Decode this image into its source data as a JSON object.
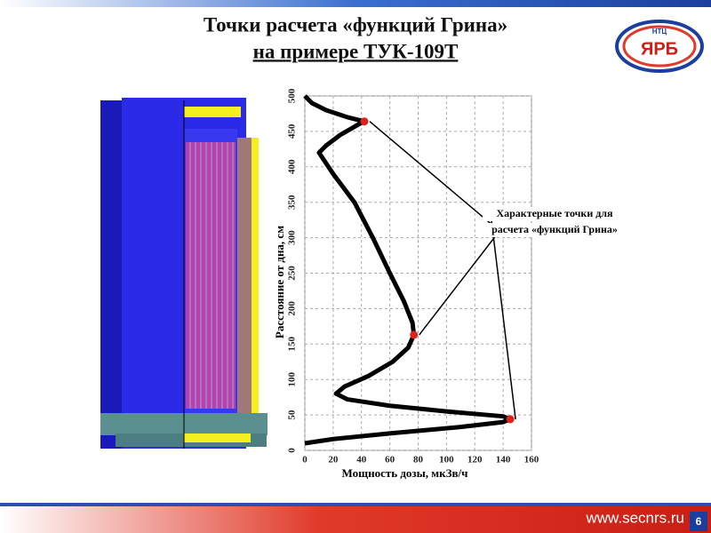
{
  "slide": {
    "title": [
      "Точки расчета «функций Грина»",
      "на примере ТУК-109Т"
    ],
    "url": "www.secnrs.ru",
    "page_number": "6",
    "logo": {
      "main": "ЯРБ",
      "top": "НТЦ"
    }
  },
  "chart_data": {
    "type": "line",
    "x_label": "Мощность дозы, мкЗв/ч",
    "y_label": "Расстояние от дна, см",
    "annotation": [
      "Характерные точки для",
      "расчета «функций Грина»"
    ],
    "series": [
      {
        "color": "#000000",
        "x": [
          0,
          20,
          60,
          110,
          140,
          145,
          140,
          100,
          60,
          30,
          22,
          28,
          45,
          62,
          73,
          77,
          76,
          70,
          60,
          48,
          35,
          20,
          10,
          15,
          25,
          38,
          42,
          30,
          15,
          5,
          0
        ],
        "values": [
          10,
          16,
          24,
          33,
          40,
          44,
          48,
          55,
          63,
          72,
          80,
          90,
          105,
          125,
          145,
          163,
          180,
          210,
          250,
          300,
          350,
          390,
          420,
          430,
          445,
          460,
          464,
          470,
          480,
          490,
          500
        ]
      }
    ],
    "highlight_points": {
      "color": "#e0201a",
      "x": [
        145,
        77,
        42
      ],
      "values": [
        44,
        163,
        464
      ]
    },
    "xlim": [
      0,
      160
    ],
    "ylim": [
      0,
      500
    ],
    "xticks": [
      0,
      20,
      40,
      60,
      80,
      100,
      120,
      140,
      160
    ],
    "yticks": [
      0,
      50,
      100,
      150,
      200,
      250,
      300,
      350,
      400,
      450,
      500
    ],
    "grid": true
  }
}
